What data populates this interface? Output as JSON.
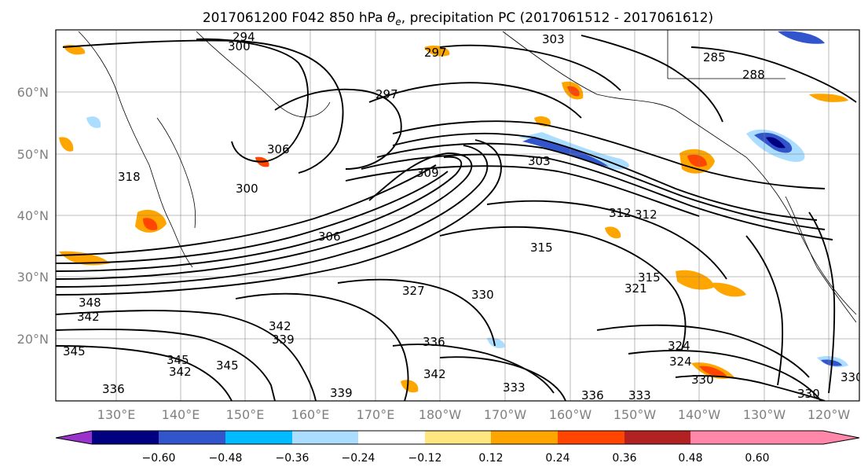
{
  "title_main": "2017061200 F042 850 hPa ",
  "title_symbol": "θ",
  "title_subscript": "e",
  "title_rest": ", precipitation PC (2017061512 - 2017061612)",
  "lat_labels": [
    "60°N",
    "50°N",
    "40°N",
    "30°N",
    "20°N"
  ],
  "lon_labels": [
    "130°E",
    "140°E",
    "150°E",
    "160°E",
    "170°E",
    "180°W",
    "170°W",
    "160°W",
    "150°W",
    "140°W",
    "130°W",
    "120°W"
  ],
  "contour_labels": [
    "294",
    "297",
    "300",
    "285",
    "288",
    "297",
    "303",
    "306",
    "306",
    "300",
    "303",
    "309",
    "312",
    "315",
    "318",
    "321",
    "324",
    "327",
    "330",
    "333",
    "336",
    "339",
    "342",
    "345",
    "348",
    "315",
    "312",
    "330",
    "336",
    "342",
    "342",
    "345",
    "333",
    "330",
    "324",
    "330",
    "336",
    "339",
    "342",
    "345"
  ],
  "colorbar": {
    "colors": [
      "#9933cc",
      "#000080",
      "#3355cc",
      "#00bbff",
      "#aaddff",
      "#ffffff",
      "#ffe680",
      "#ffa500",
      "#ff4500",
      "#b22222",
      "#ff88aa"
    ],
    "tick_labels": [
      "−0.60",
      "−0.48",
      "−0.36",
      "−0.24",
      "−0.12",
      "0.12",
      "0.24",
      "0.36",
      "0.48",
      "0.60"
    ]
  },
  "chart_data": {
    "type": "heatmap",
    "title": "2017061200 F042 850 hPa θe, precipitation PC (2017061512 - 2017061612)",
    "x_ticks": [
      "130°E",
      "140°E",
      "150°E",
      "160°E",
      "170°E",
      "180°W",
      "170°W",
      "160°W",
      "150°W",
      "140°W",
      "130°W",
      "120°W"
    ],
    "y_ticks": [
      "60°N",
      "50°N",
      "40°N",
      "30°N",
      "20°N"
    ],
    "colorbar_levels": [
      -0.6,
      -0.48,
      -0.36,
      -0.24,
      -0.12,
      0.12,
      0.24,
      0.36,
      0.48,
      0.6
    ],
    "contour_field": "850 hPa theta-e",
    "contour_values_labeled": [
      285,
      288,
      294,
      297,
      300,
      303,
      306,
      309,
      312,
      315,
      318,
      321,
      324,
      327,
      330,
      333,
      336,
      339,
      342,
      345,
      348
    ],
    "grid": true
  }
}
